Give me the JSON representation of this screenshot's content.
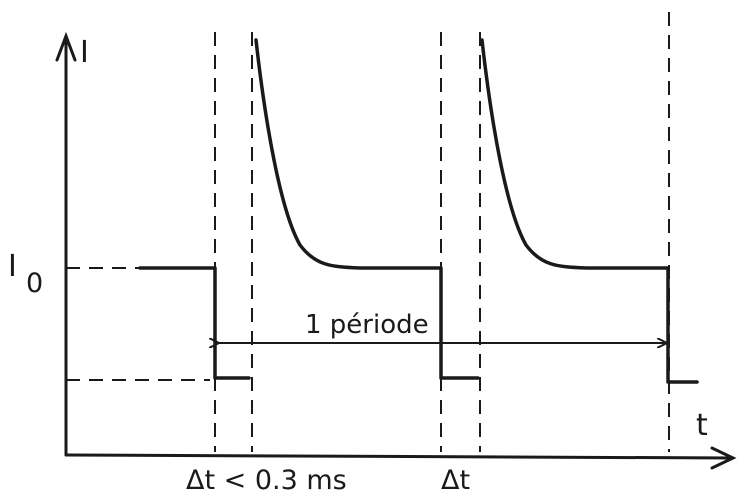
{
  "labels": {
    "y_axis": "I",
    "x_axis": "t",
    "i0_main": "I",
    "i0_sub": "0",
    "period": "1 période",
    "dt_first": "Δt < 0.3 ms",
    "dt_second": "Δt"
  },
  "colors": {
    "ink": "#1a1a1a",
    "background": "#ffffff"
  }
}
